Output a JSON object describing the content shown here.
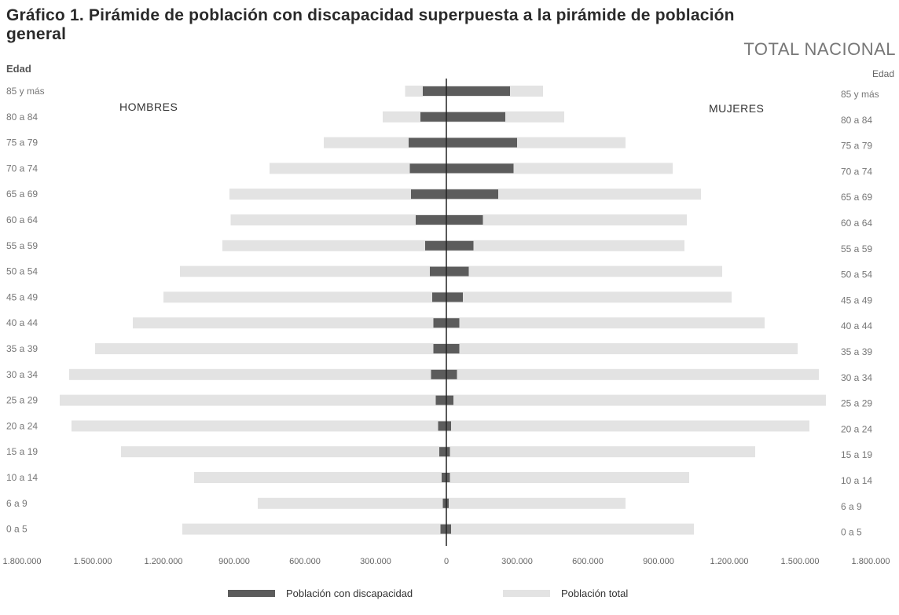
{
  "title": "Gráfico 1. Pirámide de población con discapacidad superpuesta a la pirámide de población general",
  "subtitle": "TOTAL NACIONAL",
  "y_axis_label": "Edad",
  "men_label": "HOMBRES",
  "women_label": "MUJERES",
  "legend": {
    "disability": "Población con discapacidad",
    "total": "Población total"
  },
  "colors": {
    "disability": "#5c5c5c",
    "total": "#e3e3e3",
    "axis": "#222222"
  },
  "chart_data": {
    "type": "bar",
    "orientation": "horizontal-pyramid",
    "categories": [
      "85 y más",
      "80 a 84",
      "75 a 79",
      "70 a 74",
      "65 a 69",
      "60 a 64",
      "55 a 59",
      "50 a 54",
      "45 a 49",
      "40 a 44",
      "35 a 39",
      "30 a 34",
      "25 a 29",
      "20 a 24",
      "15 a 19",
      "10 a 14",
      "6 a 9",
      "0 a 5"
    ],
    "x_tick_labels": [
      "1.800.000",
      "1.500.000",
      "1.200.000",
      "900.000",
      "600.000",
      "300.000",
      "0",
      "300.000",
      "600.000",
      "900.000",
      "1.200.000",
      "1.500.000",
      "1.800.000"
    ],
    "xlim": [
      -1800000,
      1800000
    ],
    "series": [
      {
        "name": "Población total",
        "sex": "Hombres",
        "values": [
          175000,
          270000,
          520000,
          750000,
          920000,
          915000,
          950000,
          1130000,
          1200000,
          1330000,
          1490000,
          1600000,
          1640000,
          1590000,
          1380000,
          1070000,
          800000,
          1120000
        ]
      },
      {
        "name": "Población total",
        "sex": "Mujeres",
        "values": [
          410000,
          500000,
          760000,
          960000,
          1080000,
          1020000,
          1010000,
          1170000,
          1210000,
          1350000,
          1490000,
          1580000,
          1610000,
          1540000,
          1310000,
          1030000,
          760000,
          1050000
        ]
      },
      {
        "name": "Población con discapacidad",
        "sex": "Hombres",
        "values": [
          100000,
          110000,
          160000,
          155000,
          150000,
          130000,
          90000,
          70000,
          60000,
          55000,
          55000,
          65000,
          45000,
          35000,
          30000,
          20000,
          15000,
          25000
        ]
      },
      {
        "name": "Población con discapacidad",
        "sex": "Mujeres",
        "values": [
          270000,
          250000,
          300000,
          285000,
          220000,
          155000,
          115000,
          95000,
          70000,
          55000,
          55000,
          45000,
          30000,
          20000,
          15000,
          15000,
          10000,
          20000
        ]
      }
    ]
  }
}
